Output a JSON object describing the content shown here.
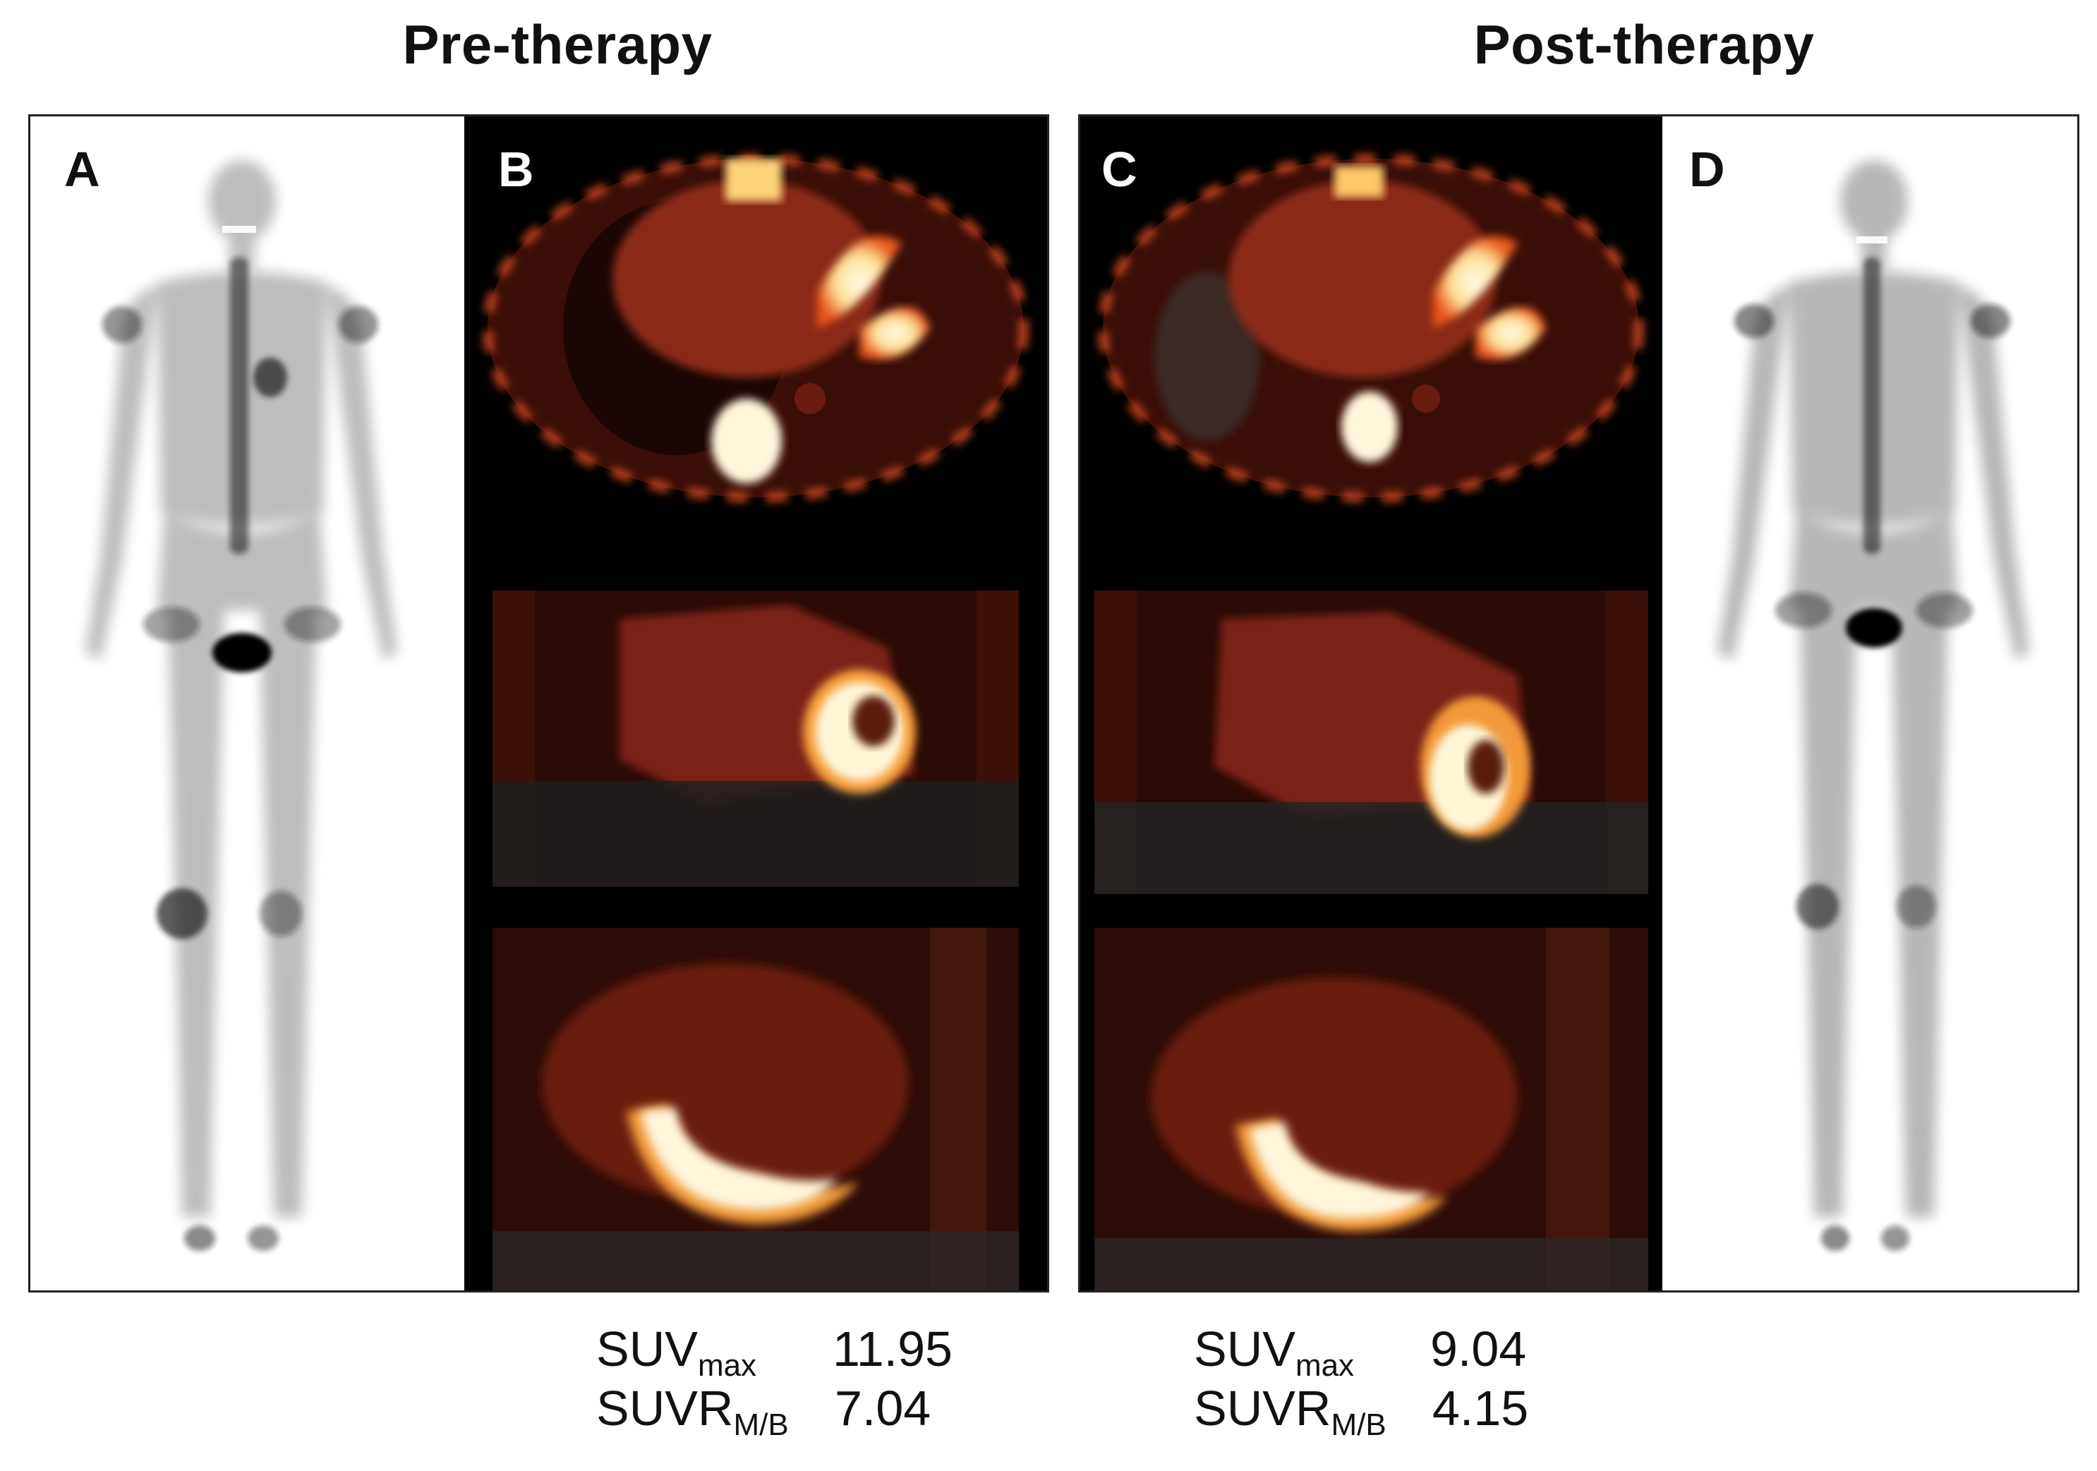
{
  "headings": {
    "pre": "Pre-therapy",
    "post": "Post-therapy"
  },
  "panels": [
    {
      "letter": "A",
      "kind": "whole-body bone scintigraphy",
      "phase": "pre"
    },
    {
      "letter": "B",
      "kind": "PET/CT fused slices",
      "phase": "pre"
    },
    {
      "letter": "C",
      "kind": "PET/CT fused slices",
      "phase": "post"
    },
    {
      "letter": "D",
      "kind": "whole-body bone scintigraphy",
      "phase": "post"
    }
  ],
  "metrics": {
    "pre": {
      "suvmax_base": "SUV",
      "suvmax_sub": "max",
      "suvmax_value": "11.95",
      "suvr_base": "SUVR",
      "suvr_sub": "M/B",
      "suvr_value": "7.04"
    },
    "post": {
      "suvmax_base": "SUV",
      "suvmax_sub": "max",
      "suvmax_value": "9.04",
      "suvr_base": "SUVR",
      "suvr_sub": "M/B",
      "suvr_value": "4.15"
    }
  },
  "colors": {
    "pet_background": "#000000",
    "pet_hot": "#fff4c8",
    "pet_warm": "#e3541a",
    "pet_tissue": "#5a1a10",
    "scan_ink": "#1a1a1a",
    "border": "#222222"
  }
}
